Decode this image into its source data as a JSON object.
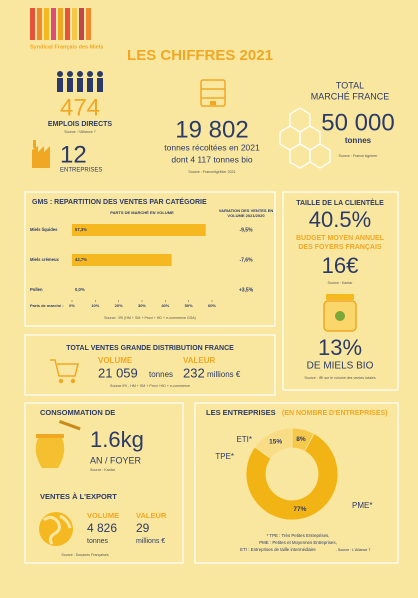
{
  "header": {
    "logo_text": "Syndicat Français des Miels",
    "title": "LES CHIFFRES 2021"
  },
  "employment": {
    "jobs": "474",
    "jobs_label": "EMPLOIS DIRECTS",
    "jobs_source": "Source : l'Alliance 7",
    "companies": "12",
    "companies_label": "ENTREPRISES"
  },
  "harvest": {
    "value": "19 802",
    "label": "tonnes récoltées en 2021",
    "organic": "dont 4 117 tonnes bio",
    "source": "Source : FranceAgriMer 2021"
  },
  "market": {
    "title_1": "TOTAL",
    "title_2": "MARCHÉ FRANCE",
    "value": "50 000",
    "unit": "tonnes",
    "source": "Source : France Agrimer"
  },
  "gms": {
    "title": "GMS : REPARTITION DES VENTES PAR CATÉGORIE",
    "share_header": "PARTS DE MARCHÉ EN VOLUME",
    "variation_header_1": "VARIATION DES VENTES EN",
    "variation_header_2": "VOLUME 2021/2020",
    "color": "#f5b820",
    "rows": [
      {
        "label": "Miels liquides",
        "share": 57.3,
        "share_label": "57,3%",
        "variation": "-9,5%",
        "variation_color": "#e23b2e"
      },
      {
        "label": "Miels crémeux",
        "share": 42.7,
        "share_label": "42,7%",
        "variation": "-7,6%",
        "variation_color": "#e23b2e"
      },
      {
        "label": "Pollen",
        "share": 0.0,
        "share_label": "0,0%",
        "variation": "+3,5%",
        "variation_color": "#3a9a3a"
      }
    ],
    "axis_label": "Parts de marché :",
    "xlim": [
      0,
      60
    ],
    "xticks": [
      {
        "value": 0,
        "label": "0%"
      },
      {
        "value": 10,
        "label": "10%"
      },
      {
        "value": 20,
        "label": "20%"
      },
      {
        "value": 30,
        "label": "30%"
      },
      {
        "value": 40,
        "label": "40%"
      },
      {
        "value": 50,
        "label": "50%"
      },
      {
        "value": 60,
        "label": "60%"
      }
    ],
    "source": "Source : IRI (HM + SM + Proxi + HD + e-commerce GSA)"
  },
  "clientele": {
    "title": "TAILLE DE LA CLIENTÈLE",
    "value": "40.5%",
    "budget_1": "BUDGET MOYEN ANNUEL",
    "budget_2": "DES FOYERS FRANÇAIS",
    "budget_value": "16€",
    "source": "Source : Kantar",
    "organic_value": "13%",
    "organic_label": "DE MIELS BIO",
    "organic_source": "Source : IRI sur le volume des ventes totales"
  },
  "retail": {
    "title": "TOTAL VENTES GRANDE DISTRIBUTION FRANCE",
    "volume_label": "VOLUME",
    "volume_value": "21 059",
    "volume_unit": "tonnes",
    "value_label": "VALEUR",
    "value_value": "232",
    "value_unit": "millions €",
    "source": "Source IRI - HM + SM + Proxi +HD + e-commerce"
  },
  "consumption": {
    "title": "CONSOMMATION DE",
    "value": "1.6kg",
    "unit": "AN / FOYER",
    "source": "Source : Kantar"
  },
  "export": {
    "title": "VENTES À L'EXPORT",
    "volume_label": "VOLUME",
    "volume_value": "4 826",
    "volume_unit": "tonnes",
    "value_label": "VALEUR",
    "value_value": "29",
    "value_unit": "millions €",
    "source": "Source : Douanes Françaises"
  },
  "companies_chart": {
    "title": "LES ENTREPRISES",
    "subtitle": "(EN NOMBRE D'ENTREPRISES)",
    "segments": [
      {
        "name": "ETI*",
        "value": 8,
        "value_label": "8%",
        "color": "#f6c94c"
      },
      {
        "name": "PME*",
        "value": 77,
        "value_label": "77%",
        "color": "#f2b414"
      },
      {
        "name": "TPE*",
        "value": 15,
        "value_label": "15%",
        "color": "#f9dd86"
      }
    ],
    "notes": [
      "* TPE : Très Petites Entreprises,",
      "PME : Petites et Moyennes Entreprises,",
      "ETI : Entreprises de taille intermédiaire"
    ],
    "source": "- Source : L'Alliance 7"
  }
}
